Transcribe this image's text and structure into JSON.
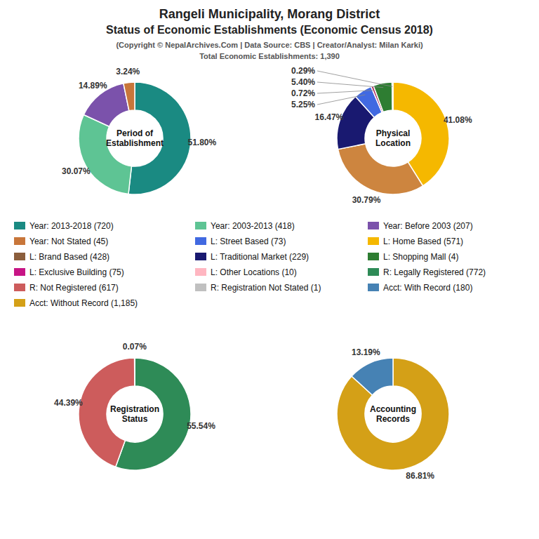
{
  "title": "Rangeli Municipality, Morang District",
  "subtitle": "Status of Economic Establishments (Economic Census 2018)",
  "annotations": [
    "(Copyright © NepalArchives.Com | Data Source: CBS | Creator/Analyst: Milan Karki)",
    "Total Economic Establishments: 1,390"
  ],
  "chart_data": [
    {
      "type": "pie",
      "title": "Period of\nEstablishment",
      "values": [
        51.8,
        30.07,
        14.89,
        3.24
      ],
      "value_labels": [
        "51.80%",
        "30.07%",
        "14.89%",
        "3.24%"
      ],
      "colors": [
        "#1a8a82",
        "#5ec494",
        "#7B52AB",
        "#C8763A"
      ],
      "data_labels": true
    },
    {
      "type": "pie",
      "title": "Physical\nLocation",
      "values": [
        41.08,
        30.79,
        16.47,
        5.25,
        0.72,
        5.4,
        0.29
      ],
      "value_labels": [
        "41.08%",
        "30.79%",
        "16.47%",
        "5.25%",
        "0.72%",
        "5.40%",
        "0.29%"
      ],
      "colors": [
        "#F5B800",
        "#CD853F",
        "#191970",
        "#4169E1",
        "#B03060",
        "#2E7D32",
        "#1B5E20"
      ],
      "data_labels": true
    },
    {
      "type": "pie",
      "title": "Registration\nStatus",
      "values": [
        55.54,
        44.39,
        0.07
      ],
      "value_labels": [
        "55.54%",
        "44.39%",
        "0.07%"
      ],
      "colors": [
        "#2E8B57",
        "#CD5C5C",
        "#C0C0C0"
      ],
      "data_labels": true
    },
    {
      "type": "pie",
      "title": "Accounting\nRecords",
      "values": [
        86.81,
        13.19
      ],
      "value_labels": [
        "86.81%",
        "13.19%"
      ],
      "colors": [
        "#D4A017",
        "#4682B4"
      ],
      "data_labels": true
    }
  ],
  "legend_entries": [
    {
      "name": "Year: 2013-2018 (720)",
      "color": "#1a8a82"
    },
    {
      "name": "Year: Not Stated (45)",
      "color": "#C8763A"
    },
    {
      "name": "L: Brand Based (428)",
      "color": "#8B5E3C"
    },
    {
      "name": "L: Exclusive Building (75)",
      "color": "#C71585"
    },
    {
      "name": "R: Not Registered (617)",
      "color": "#CD5C5C"
    },
    {
      "name": "Acct: Without Record (1,185)",
      "color": "#D4A017"
    },
    {
      "name": "Year: 2003-2013 (418)",
      "color": "#5ec494"
    },
    {
      "name": "L: Street Based (73)",
      "color": "#4169E1"
    },
    {
      "name": "L: Traditional Market (229)",
      "color": "#191970"
    },
    {
      "name": "L: Other Locations (10)",
      "color": "#FFB6C1"
    },
    {
      "name": "R: Registration Not Stated (1)",
      "color": "#C0C0C0"
    },
    {
      "name": "Year: Before 2003 (207)",
      "color": "#7B52AB"
    },
    {
      "name": "L: Home Based (571)",
      "color": "#F5B800"
    },
    {
      "name": "L: Shopping Mall (4)",
      "color": "#2E7D32"
    },
    {
      "name": "R: Legally Registered (772)",
      "color": "#2E8B57"
    },
    {
      "name": "Acct: With Record (180)",
      "color": "#4682B4"
    }
  ]
}
